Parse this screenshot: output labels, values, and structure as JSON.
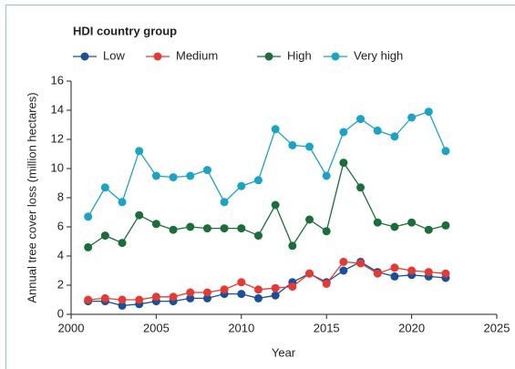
{
  "chart_data": {
    "type": "line",
    "legend_title": "HDI country group",
    "xlabel": "Year",
    "ylabel": "Annual tree cover loss (million hectares)",
    "x": [
      2001,
      2002,
      2003,
      2004,
      2005,
      2006,
      2007,
      2008,
      2009,
      2010,
      2011,
      2012,
      2013,
      2014,
      2015,
      2016,
      2017,
      2018,
      2019,
      2020,
      2021,
      2022
    ],
    "series": [
      {
        "name": "Low",
        "color": "#1a4f9c",
        "values": [
          0.9,
          0.9,
          0.6,
          0.7,
          0.9,
          0.9,
          1.1,
          1.1,
          1.4,
          1.4,
          1.1,
          1.3,
          2.2,
          2.8,
          2.2,
          3.0,
          3.6,
          2.9,
          2.6,
          2.7,
          2.6,
          2.5
        ]
      },
      {
        "name": "Medium",
        "color": "#e53a33",
        "values": [
          1.0,
          1.1,
          1.0,
          1.0,
          1.2,
          1.2,
          1.5,
          1.5,
          1.7,
          2.2,
          1.7,
          1.8,
          1.9,
          2.8,
          2.1,
          3.6,
          3.5,
          2.8,
          3.2,
          3.0,
          2.9,
          2.8
        ]
      },
      {
        "name": "High",
        "color": "#1b6e3a",
        "values": [
          4.6,
          5.4,
          4.9,
          6.8,
          6.2,
          5.8,
          6.0,
          5.9,
          5.9,
          5.9,
          5.4,
          7.5,
          4.7,
          6.5,
          5.7,
          10.4,
          8.7,
          6.3,
          6.0,
          6.3,
          5.8,
          6.1
        ]
      },
      {
        "name": "Very high",
        "color": "#1ba3c6",
        "values": [
          6.7,
          8.7,
          7.7,
          11.2,
          9.5,
          9.4,
          9.5,
          9.9,
          7.7,
          8.8,
          9.2,
          12.7,
          11.6,
          11.5,
          9.5,
          12.5,
          13.4,
          12.6,
          12.2,
          13.5,
          13.9,
          11.2
        ]
      }
    ],
    "xlim": [
      2000,
      2025
    ],
    "xticks": [
      2000,
      2005,
      2010,
      2015,
      2020,
      2025
    ],
    "ylim": [
      0,
      16
    ],
    "yticks": [
      0,
      2,
      4,
      6,
      8,
      10,
      12,
      14,
      16
    ],
    "grid": false
  }
}
